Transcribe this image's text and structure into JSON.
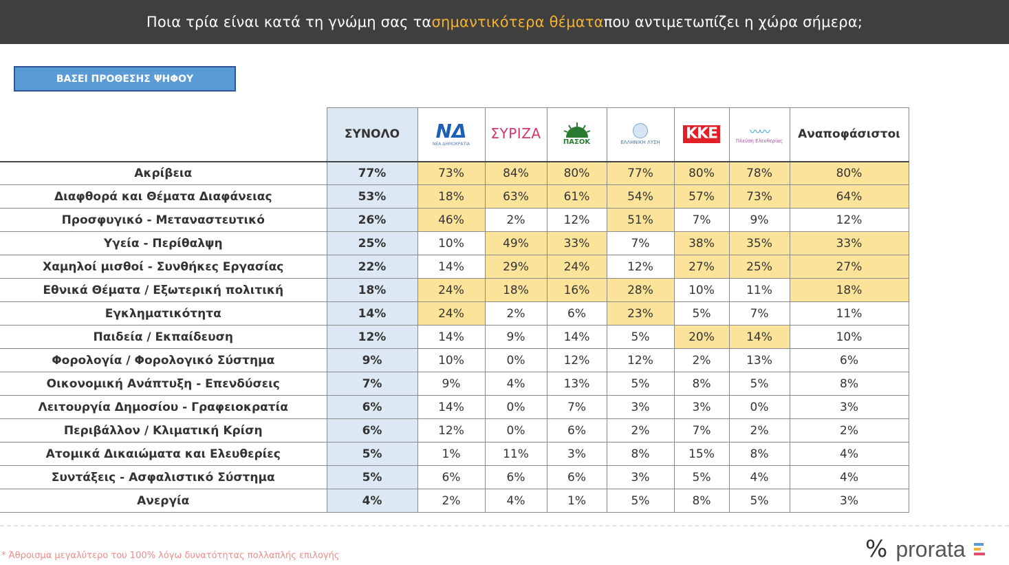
{
  "header": {
    "title_before": "Ποια τρία είναι κατά τη γνώμη σας τα ",
    "title_highlight": "σημαντικότερα θέματα",
    "title_after": " που αντιμετωπίζει η χώρα σήμερα;"
  },
  "badge": {
    "label": "ΒΑΣΕΙ ΠΡΟΘΕΣΗΣ ΨΗΦΟΥ"
  },
  "table": {
    "columns": {
      "total": "ΣΥΝΟΛΟ",
      "nd": {
        "logo_text": "ΝΔ",
        "sub": "ΝΕΑ ΔΗΜΟΚΡΑΤΙΑ"
      },
      "syriza": {
        "logo_text": "ΣΥΡΙΖΑ"
      },
      "pasok": {
        "logo_text": "ΠΑΣΟΚ"
      },
      "el": {
        "logo_text": "ΕΛΛΗΝΙΚΗ ΛΥΣΗ"
      },
      "kke": {
        "logo_text": "ΚΚΕ"
      },
      "pl": {
        "logo_text": "Πλεύση Ελευθερίας"
      },
      "undecided": "Αναποφάσιστοι"
    },
    "rows": [
      {
        "label": "Ακρίβεια",
        "total": "77%",
        "values": [
          "73%",
          "84%",
          "80%",
          "77%",
          "80%",
          "78%",
          "80%"
        ]
      },
      {
        "label": "Διαφθορά και Θέματα Διαφάνειας",
        "total": "53%",
        "values": [
          "18%",
          "63%",
          "61%",
          "54%",
          "57%",
          "73%",
          "64%"
        ]
      },
      {
        "label": "Προσφυγικό - Μεταναστευτικό",
        "total": "26%",
        "values": [
          "46%",
          "2%",
          "12%",
          "51%",
          "7%",
          "9%",
          "12%"
        ]
      },
      {
        "label": "Υγεία - Περίθαλψη",
        "total": "25%",
        "values": [
          "10%",
          "49%",
          "33%",
          "7%",
          "38%",
          "35%",
          "33%"
        ]
      },
      {
        "label": "Χαμηλοί μισθοί - Συνθήκες Εργασίας",
        "total": "22%",
        "values": [
          "14%",
          "29%",
          "24%",
          "12%",
          "27%",
          "25%",
          "27%"
        ]
      },
      {
        "label": "Εθνικά Θέματα / Εξωτερική πολιτική",
        "total": "18%",
        "values": [
          "24%",
          "18%",
          "16%",
          "28%",
          "10%",
          "11%",
          "18%"
        ]
      },
      {
        "label": "Εγκληματικότητα",
        "total": "14%",
        "values": [
          "24%",
          "2%",
          "6%",
          "23%",
          "5%",
          "7%",
          "11%"
        ]
      },
      {
        "label": "Παιδεία / Εκπαίδευση",
        "total": "12%",
        "values": [
          "14%",
          "9%",
          "14%",
          "5%",
          "20%",
          "14%",
          "10%"
        ]
      },
      {
        "label": "Φορολογία / Φορολογικό Σύστημα",
        "total": "9%",
        "values": [
          "10%",
          "0%",
          "12%",
          "12%",
          "2%",
          "13%",
          "6%"
        ]
      },
      {
        "label": "Οικονομική Ανάπτυξη - Επενδύσεις",
        "total": "7%",
        "values": [
          "9%",
          "4%",
          "13%",
          "5%",
          "8%",
          "5%",
          "8%"
        ]
      },
      {
        "label": "Λειτουργία Δημοσίου - Γραφειοκρατία",
        "total": "6%",
        "values": [
          "14%",
          "0%",
          "7%",
          "3%",
          "3%",
          "0%",
          "3%"
        ]
      },
      {
        "label": "Περιβάλλον / Κλιματική Κρίση",
        "total": "6%",
        "values": [
          "12%",
          "0%",
          "6%",
          "2%",
          "7%",
          "2%",
          "2%"
        ]
      },
      {
        "label": "Ατομικά Δικαιώματα και Ελευθερίες",
        "total": "5%",
        "values": [
          "1%",
          "11%",
          "3%",
          "8%",
          "15%",
          "8%",
          "4%"
        ]
      },
      {
        "label": "Συντάξεις - Ασφαλιστικό Σύστημα",
        "total": "5%",
        "values": [
          "6%",
          "6%",
          "6%",
          "3%",
          "5%",
          "4%",
          "4%"
        ]
      },
      {
        "label": "Ανεργία",
        "total": "4%",
        "values": [
          "2%",
          "4%",
          "1%",
          "5%",
          "8%",
          "5%",
          "3%"
        ]
      }
    ],
    "highlighted": [
      [
        1,
        1,
        1,
        1,
        1,
        1,
        1
      ],
      [
        1,
        1,
        1,
        1,
        1,
        1,
        1
      ],
      [
        1,
        0,
        0,
        1,
        0,
        0,
        0
      ],
      [
        0,
        1,
        1,
        0,
        1,
        1,
        1
      ],
      [
        0,
        1,
        1,
        0,
        1,
        1,
        1
      ],
      [
        1,
        1,
        1,
        1,
        0,
        0,
        1
      ],
      [
        1,
        0,
        0,
        1,
        0,
        0,
        0
      ],
      [
        0,
        0,
        0,
        0,
        1,
        1,
        0
      ],
      [
        0,
        0,
        0,
        0,
        0,
        0,
        0
      ],
      [
        0,
        0,
        0,
        0,
        0,
        0,
        0
      ],
      [
        0,
        0,
        0,
        0,
        0,
        0,
        0
      ],
      [
        0,
        0,
        0,
        0,
        0,
        0,
        0
      ],
      [
        0,
        0,
        0,
        0,
        0,
        0,
        0
      ],
      [
        0,
        0,
        0,
        0,
        0,
        0,
        0
      ],
      [
        0,
        0,
        0,
        0,
        0,
        0,
        0
      ]
    ],
    "highlight_color": "#fbe39a",
    "total_column_color": "#dce9f5"
  },
  "footer": {
    "footnote": "* Άθροισμα μεγαλύτερο του 100% λόγω δυνατότητας πολλαπλής επιλογής",
    "brand_symbol": "%",
    "brand_name": "prorata"
  },
  "colors": {
    "header_bg": "#3f3f3f",
    "header_highlight": "#f5b233",
    "badge_bg": "#5b9bd5"
  }
}
